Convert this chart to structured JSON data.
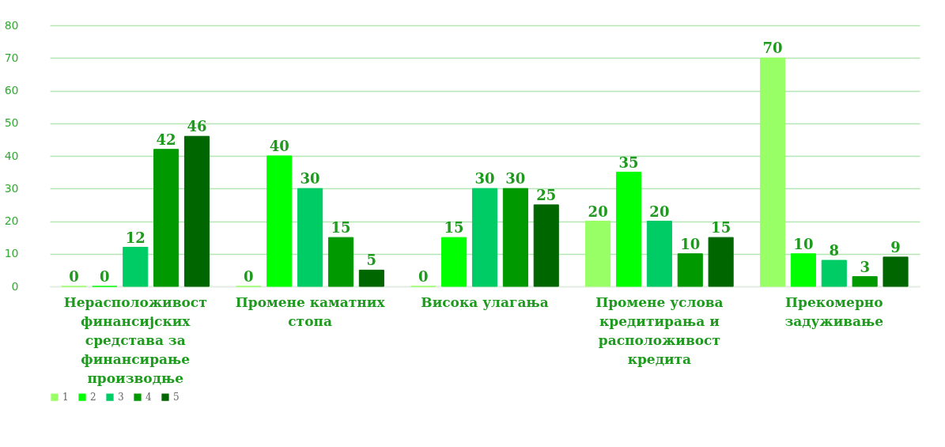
{
  "chart_data": {
    "type": "bar",
    "categories": [
      "Нерасположивост финансијских средстава за финансирање производње",
      "Промене каматних стопа",
      "Висока улагања",
      "Промене услова кредитирања и расположивост кредита",
      "Прекомерно задуживање"
    ],
    "series": [
      {
        "name": "1",
        "color": "#99ff66",
        "values": [
          0,
          0,
          0,
          20,
          70
        ]
      },
      {
        "name": "2",
        "color": "#00ff00",
        "values": [
          0,
          40,
          15,
          35,
          10
        ]
      },
      {
        "name": "3",
        "color": "#00cc66",
        "values": [
          12,
          30,
          30,
          20,
          8
        ]
      },
      {
        "name": "4",
        "color": "#009900",
        "values": [
          42,
          15,
          30,
          10,
          3
        ]
      },
      {
        "name": "5",
        "color": "#006600",
        "values": [
          46,
          5,
          25,
          15,
          9
        ]
      }
    ],
    "ylim": [
      0,
      80
    ],
    "yticks": [
      0,
      10,
      20,
      30,
      40,
      50,
      60,
      70,
      80
    ],
    "grid": "y",
    "legend": "bottom",
    "data_labels": true
  }
}
